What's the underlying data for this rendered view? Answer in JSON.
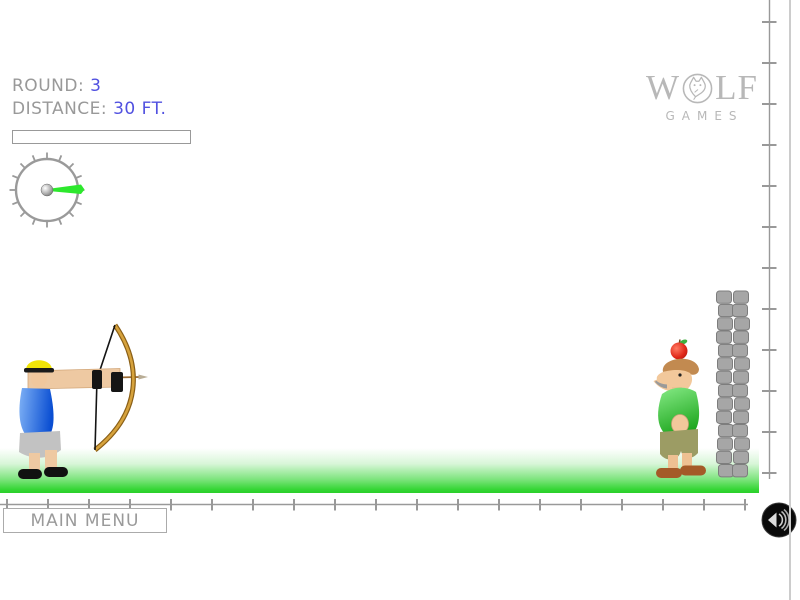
{
  "hud": {
    "round_label": "ROUND:",
    "round_value": "3",
    "distance_label": "DISTANCE:",
    "distance_value": "30 FT."
  },
  "logo": {
    "wolf_w": "W",
    "wolf_lf": "LF",
    "games": "GAMES"
  },
  "menu": {
    "main_menu_label": "MAIN MENU"
  },
  "icons": {
    "sound_button": "speaker-icon",
    "gauge_needle": "power-needle-icon",
    "logo_mark": "wolf-head-icon"
  },
  "colors": {
    "hud_label_gray": "#999999",
    "hud_value_blue": "#5151e0",
    "ruler_gray": "#999999",
    "ground_green": "#2bd02b",
    "needle_green": "#2de82d",
    "logo_gray": "#b8b8b8",
    "bow_gold": "#d6a23c",
    "apple_red": "#e02818",
    "shirt_green": "#3fc43f",
    "stone_gray": "#a6a6a6"
  }
}
